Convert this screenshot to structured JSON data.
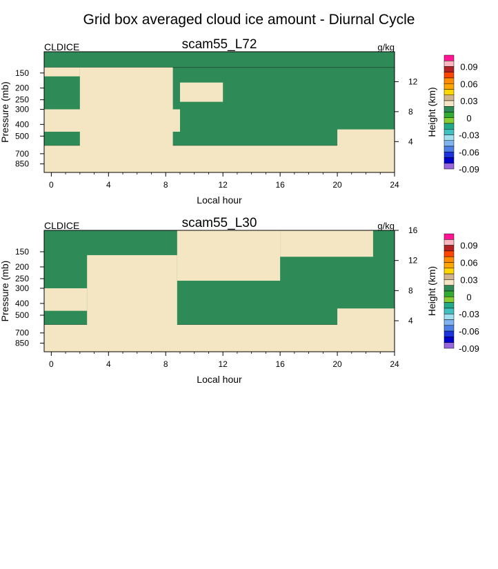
{
  "figure": {
    "title": "Grid box averaged cloud ice amount - Diurnal Cycle"
  },
  "chart_data": [
    {
      "type": "heatmap",
      "title": "scam55_L72",
      "left_label": "CLDICE",
      "units": "g/kg",
      "xlabel": "Local hour",
      "ylabel": "Pressure (mb)",
      "ylabel_right": "Height (km)",
      "xlim": [
        -0.5,
        24
      ],
      "x_ticks": [
        0,
        4,
        8,
        12,
        16,
        20,
        24
      ],
      "x_tick_labels": [
        "0",
        "4",
        "8",
        "12",
        "16",
        "20",
        "24"
      ],
      "pressure_ticks": [
        150,
        200,
        250,
        300,
        400,
        500,
        700,
        850
      ],
      "pressure_tick_labels": [
        "150",
        "200",
        "250",
        "300",
        "400",
        "500",
        "700",
        "850"
      ],
      "pressure_range": [
        1000,
        100
      ],
      "height_ticks": [
        4,
        8,
        12
      ],
      "height_tick_labels": [
        "4",
        "8",
        "12"
      ],
      "contour_level": 0,
      "below_level_color": "#f5e6c3",
      "above_level_color": "#2e8b57",
      "regions": [
        {
          "band": [
            100,
            600
          ],
          "hours": [
            -0.5,
            24
          ],
          "class": "positive"
        },
        {
          "band": [
            100,
            135
          ],
          "hours": [
            -0.5,
            24
          ],
          "class": "positive"
        },
        {
          "band": [
            135,
            620
          ],
          "hours": [
            2.0,
            8.5
          ],
          "class": "zero"
        },
        {
          "band": [
            600,
            1000
          ],
          "hours": [
            -0.5,
            24
          ],
          "class": "zero"
        },
        {
          "band": [
            300,
            460
          ],
          "hours": [
            -0.5,
            9.0
          ],
          "class": "zero"
        },
        {
          "band": [
            135,
            160
          ],
          "hours": [
            -0.5,
            2.0
          ],
          "class": "zero"
        },
        {
          "band": [
            440,
            620
          ],
          "hours": [
            20.0,
            24
          ],
          "class": "zero"
        },
        {
          "band": [
            180,
            260
          ],
          "hours": [
            9.0,
            12.0
          ],
          "class": "zero"
        }
      ]
    },
    {
      "type": "heatmap",
      "title": "scam55_L30",
      "left_label": "CLDICE",
      "units": "g/kg",
      "xlabel": "Local hour",
      "ylabel": "Pressure (mb)",
      "ylabel_right": "Height (km)",
      "xlim": [
        -0.5,
        24
      ],
      "x_ticks": [
        0,
        4,
        8,
        12,
        16,
        20,
        24
      ],
      "x_tick_labels": [
        "0",
        "4",
        "8",
        "12",
        "16",
        "20",
        "24"
      ],
      "pressure_ticks": [
        150,
        200,
        250,
        300,
        400,
        500,
        700,
        850
      ],
      "pressure_tick_labels": [
        "150",
        "200",
        "250",
        "300",
        "400",
        "500",
        "700",
        "850"
      ],
      "pressure_range": [
        1000,
        100
      ],
      "height_ticks": [
        4,
        8,
        12,
        16
      ],
      "height_tick_labels": [
        "4",
        "8",
        "12",
        "16"
      ],
      "contour_level": 0,
      "below_level_color": "#f5e6c3",
      "above_level_color": "#2e8b57",
      "regions": [
        {
          "band": [
            100,
            600
          ],
          "hours": [
            -0.5,
            24
          ],
          "class": "positive"
        },
        {
          "band": [
            600,
            1000
          ],
          "hours": [
            -0.5,
            24
          ],
          "class": "zero"
        },
        {
          "band": [
            160,
            620
          ],
          "hours": [
            2.5,
            8.8
          ],
          "class": "zero"
        },
        {
          "band": [
            300,
            460
          ],
          "hours": [
            -0.5,
            2.5
          ],
          "class": "zero"
        },
        {
          "band": [
            100,
            260
          ],
          "hours": [
            8.8,
            16.0
          ],
          "class": "zero"
        },
        {
          "band": [
            100,
            165
          ],
          "hours": [
            16.0,
            22.5
          ],
          "class": "zero"
        },
        {
          "band": [
            440,
            620
          ],
          "hours": [
            20.0,
            24
          ],
          "class": "zero"
        }
      ]
    }
  ],
  "colorbar": {
    "colors": [
      "#9966dd",
      "#0000cc",
      "#1a33dd",
      "#4d7fe6",
      "#80b3f0",
      "#a0dff0",
      "#40c0c0",
      "#22aa88",
      "#88cc33",
      "#33aa33",
      "#2e8b57",
      "#f5e6c3",
      "#d2b48c",
      "#ffd700",
      "#ffa500",
      "#ff8c00",
      "#ff4500",
      "#b22222",
      "#ffb6c1",
      "#ff1493"
    ],
    "labels": [
      "-0.09",
      "-0.06",
      "-0.03",
      "0",
      "0.03",
      "0.06",
      "0.09"
    ]
  }
}
